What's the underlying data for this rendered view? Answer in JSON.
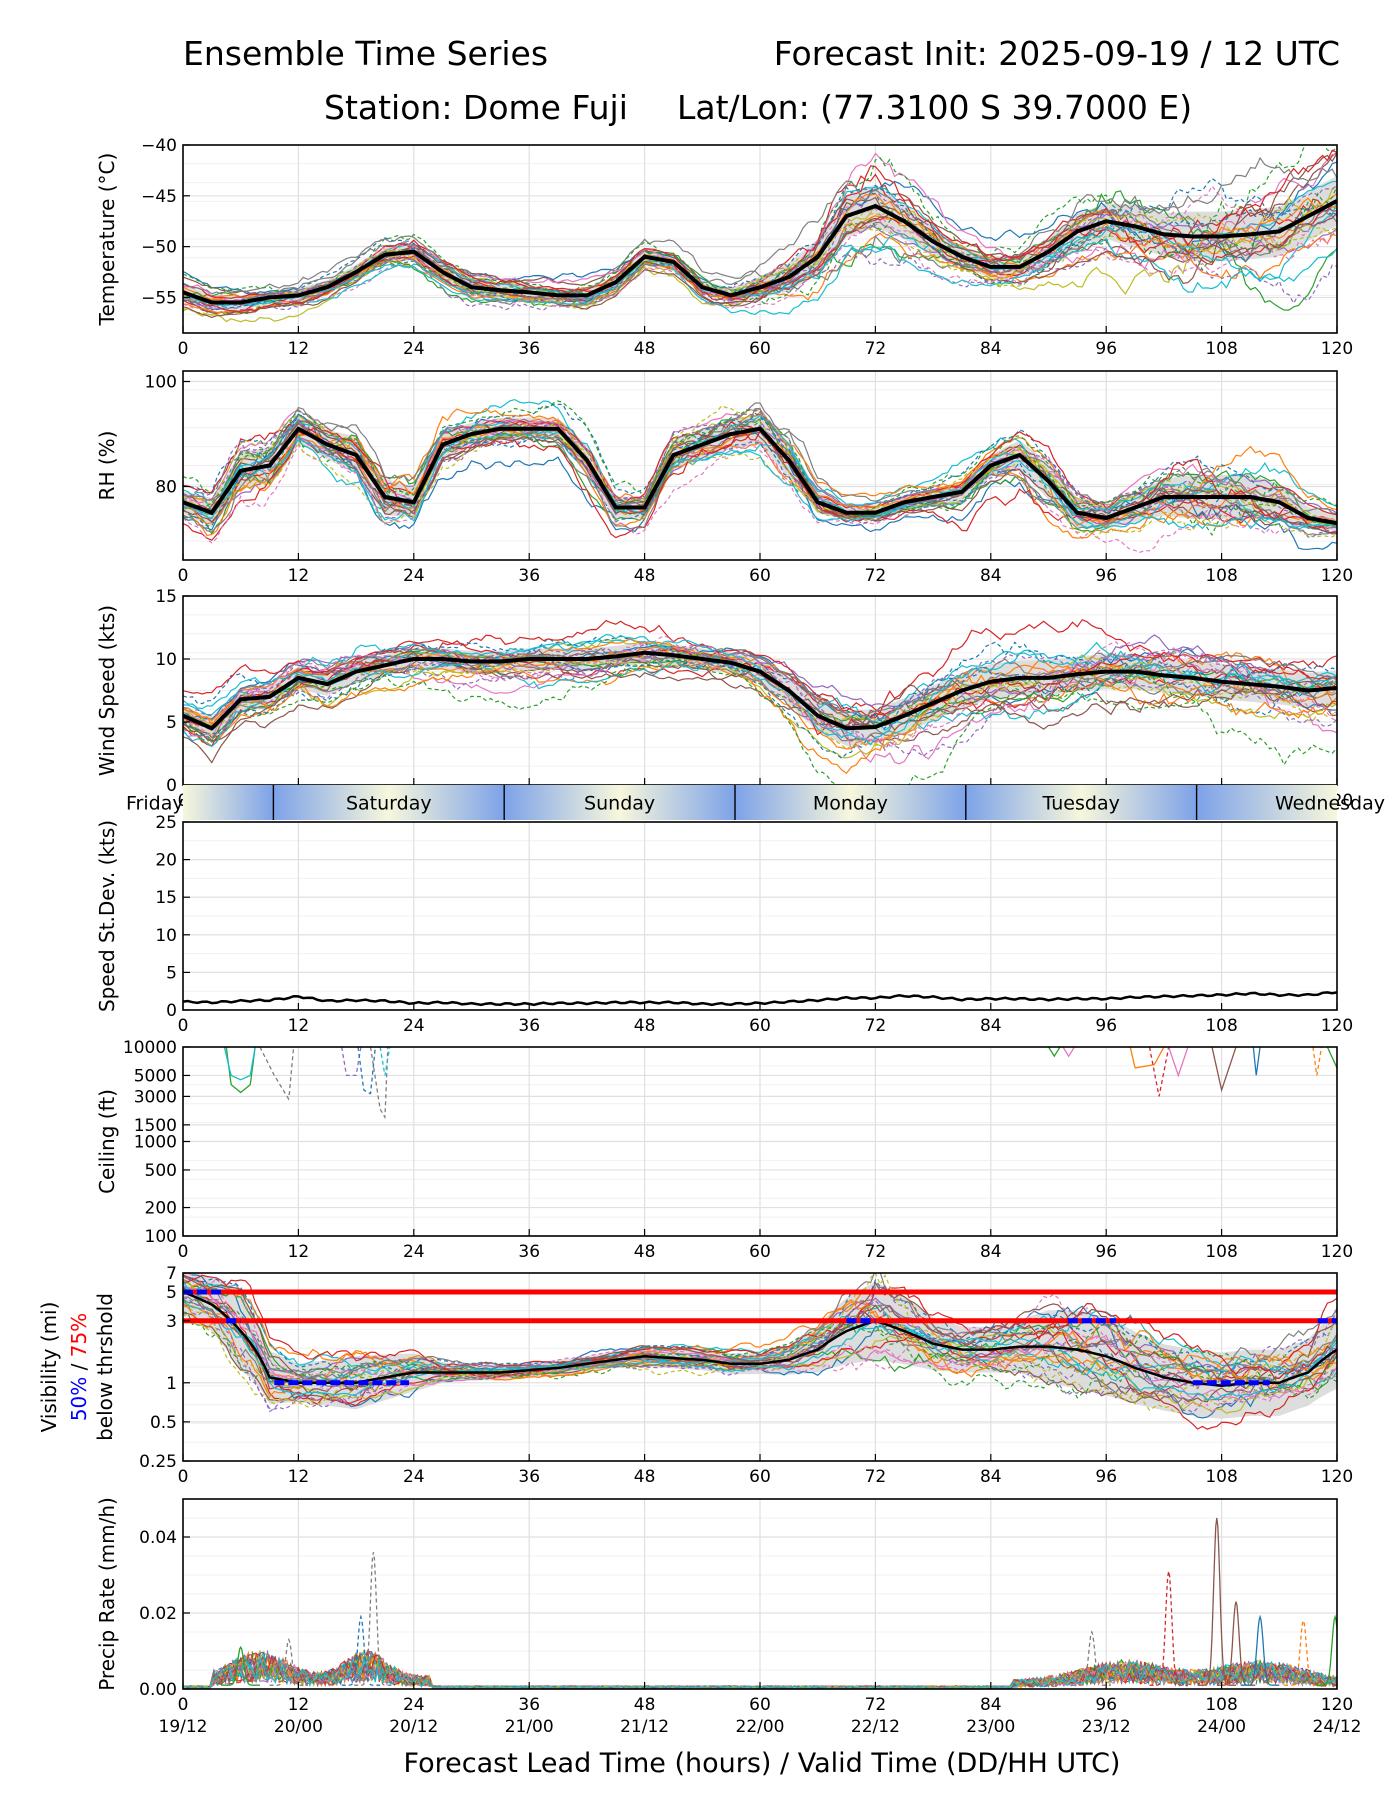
{
  "header": {
    "title": "Ensemble Time Series",
    "init": "Forecast Init: 2025-09-19 / 12 UTC",
    "station": "Station: Dome Fuji",
    "latlon": "Lat/Lon: (77.3100 S 39.7000 E)"
  },
  "colors": {
    "members": [
      "#1f77b4",
      "#ff7f0e",
      "#2ca02c",
      "#d62728",
      "#9467bd",
      "#8c564b",
      "#e377c2",
      "#7f7f7f",
      "#bcbd22",
      "#17becf"
    ],
    "mean": "#000000",
    "spread": "#d9d9d9",
    "threshold_50": "#0000ff",
    "threshold_75": "#ff0000",
    "grid": "#e0e0e0",
    "day_dark": "#7da2e8",
    "day_light": "#f7f7dc"
  },
  "chart_data": [
    {
      "type": "line",
      "id": "temperature",
      "ylabel": "Temperature (°C)",
      "ylim": [
        -58.5,
        -40
      ],
      "yticks": [
        -55,
        -50,
        -45,
        -40
      ],
      "yticklabels": [
        "−55",
        "−50",
        "−45",
        "−40"
      ],
      "x": [
        0,
        3,
        6,
        9,
        12,
        15,
        18,
        21,
        24,
        27,
        30,
        33,
        36,
        39,
        42,
        45,
        48,
        51,
        54,
        57,
        60,
        63,
        66,
        69,
        72,
        75,
        78,
        81,
        84,
        87,
        90,
        93,
        96,
        99,
        102,
        105,
        108,
        111,
        114,
        117,
        120
      ],
      "mean": [
        -54.5,
        -55.5,
        -55.5,
        -55,
        -54.8,
        -54,
        -52.5,
        -50.8,
        -50.5,
        -52.5,
        -54,
        -54.3,
        -54.5,
        -54.8,
        -54.8,
        -53.5,
        -51,
        -51.5,
        -54,
        -54.8,
        -54,
        -53,
        -51,
        -47,
        -46,
        -47.5,
        -49.5,
        -51,
        -52,
        -52,
        -50.5,
        -48.5,
        -47.5,
        -48,
        -48.8,
        -49,
        -49,
        -48.8,
        -48.5,
        -47,
        -45.5
      ],
      "spread": [
        1.2,
        1,
        1,
        1,
        1,
        1,
        1,
        1.2,
        1.2,
        1,
        1,
        1,
        1,
        1,
        1,
        1,
        1,
        1,
        1,
        1,
        1.5,
        2,
        2.5,
        3,
        3,
        2.5,
        2,
        1.5,
        1.5,
        1.5,
        2,
        2.5,
        2.5,
        3,
        3,
        3.5,
        3.5,
        3.5,
        3.5,
        3.5,
        3.5
      ],
      "members": 30
    },
    {
      "type": "line",
      "id": "rh",
      "ylabel": "RH (%)",
      "ylim": [
        66,
        102
      ],
      "yticks": [
        80,
        100
      ],
      "yticklabels": [
        "80",
        "100"
      ],
      "x": [
        0,
        3,
        6,
        9,
        12,
        15,
        18,
        21,
        24,
        27,
        30,
        33,
        36,
        39,
        42,
        45,
        48,
        51,
        54,
        57,
        60,
        63,
        66,
        69,
        72,
        75,
        78,
        81,
        84,
        87,
        90,
        93,
        96,
        99,
        102,
        105,
        108,
        111,
        114,
        117,
        120
      ],
      "mean": [
        77,
        75,
        83,
        84,
        91,
        88,
        86,
        78,
        77,
        88,
        90,
        91,
        91,
        91,
        85,
        76,
        76,
        86,
        88,
        90,
        91,
        85,
        77,
        75,
        75,
        77,
        78,
        79,
        84,
        86,
        81,
        75,
        74,
        76,
        78,
        78,
        78,
        78,
        77,
        74,
        73
      ],
      "spread": [
        3,
        4,
        5,
        5,
        4,
        4,
        5,
        5,
        4,
        4,
        3,
        3,
        3,
        3,
        4,
        3,
        3,
        4,
        4,
        4,
        4,
        5,
        3,
        2,
        2,
        2,
        2,
        3,
        3,
        4,
        5,
        4,
        3,
        4,
        5,
        6,
        6,
        6,
        5,
        3,
        2
      ],
      "members": 30
    },
    {
      "type": "line",
      "id": "wind",
      "ylabel": "Wind Speed (kts)",
      "ylim": [
        0,
        15
      ],
      "yticks": [
        0,
        5,
        10,
        15
      ],
      "yticklabels": [
        "0",
        "5",
        "10",
        "15"
      ],
      "x": [
        0,
        3,
        6,
        9,
        12,
        15,
        18,
        21,
        24,
        27,
        30,
        33,
        36,
        39,
        42,
        45,
        48,
        51,
        54,
        57,
        60,
        63,
        66,
        69,
        72,
        75,
        78,
        81,
        84,
        87,
        90,
        93,
        96,
        99,
        102,
        105,
        108,
        111,
        114,
        117,
        120
      ],
      "mean": [
        5.5,
        4.5,
        6.8,
        7,
        8.5,
        8,
        9,
        9.5,
        10,
        10,
        9.8,
        9.8,
        10,
        10,
        10,
        10.2,
        10.5,
        10.3,
        10,
        9.7,
        9,
        7.5,
        5.5,
        4.5,
        4.6,
        5.5,
        6.5,
        7.5,
        8.2,
        8.5,
        8.5,
        8.8,
        9,
        9,
        8.7,
        8.5,
        8.2,
        8,
        7.8,
        7.5,
        7.7
      ],
      "spread": [
        1,
        1.3,
        1.3,
        1.3,
        1.3,
        1.3,
        1.3,
        1.2,
        1.2,
        1.2,
        1.2,
        1.2,
        1.2,
        1.2,
        1.2,
        1.2,
        1.2,
        1.2,
        1.2,
        1.2,
        1.3,
        1.5,
        1.8,
        2,
        2,
        2,
        2,
        2,
        2,
        2,
        2,
        2,
        2,
        2,
        2,
        2,
        2,
        2,
        2,
        2,
        2
      ],
      "members": 30
    },
    {
      "type": "line",
      "id": "stdev",
      "ylabel": "Speed St.Dev. (kts)",
      "ylim": [
        0,
        25
      ],
      "yticks": [
        0,
        5,
        10,
        15,
        20,
        25
      ],
      "yticklabels": [
        "0",
        "5",
        "10",
        "15",
        "20",
        "25"
      ],
      "x": [
        0,
        3,
        6,
        9,
        12,
        15,
        18,
        21,
        24,
        27,
        30,
        33,
        36,
        39,
        42,
        45,
        48,
        51,
        54,
        57,
        60,
        63,
        66,
        69,
        72,
        75,
        78,
        81,
        84,
        87,
        90,
        93,
        96,
        99,
        102,
        105,
        108,
        111,
        114,
        117,
        120
      ],
      "mean": [
        1.1,
        1,
        1.2,
        1.3,
        1.8,
        1.2,
        1.3,
        1.2,
        0.9,
        1,
        0.8,
        0.8,
        0.8,
        0.9,
        0.9,
        1,
        1,
        1,
        0.8,
        0.8,
        0.9,
        1.1,
        1.3,
        1.6,
        1.6,
        1.9,
        1.7,
        1.4,
        1.5,
        1.5,
        1.4,
        1.5,
        1.5,
        1.7,
        1.8,
        1.9,
        2,
        2.2,
        2,
        2,
        2.4
      ]
    },
    {
      "type": "line",
      "id": "ceiling",
      "ylabel": "Ceiling (ft)",
      "scale": "log",
      "ylim": [
        100,
        10000
      ],
      "yticks": [
        100,
        200,
        500,
        1000,
        1500,
        3000,
        5000,
        10000
      ],
      "yticklabels": [
        "100",
        "200",
        "500",
        "1000",
        "1500",
        "3000",
        "5000",
        "10000"
      ],
      "events": [
        {
          "x": [
            4.5,
            5,
            6,
            7,
            7.5
          ],
          "y": [
            10000,
            4000,
            3300,
            4000,
            10000
          ],
          "color": "#2ca02c"
        },
        {
          "x": [
            4.3,
            5,
            6,
            7,
            7.5
          ],
          "y": [
            10000,
            5000,
            4500,
            5000,
            10000
          ],
          "color": "#17becf"
        },
        {
          "x": [
            8,
            9.5,
            11,
            11.5
          ],
          "y": [
            10000,
            5000,
            2800,
            10000
          ],
          "color": "#7f7f7f",
          "dashed": true
        },
        {
          "x": [
            16.5,
            17,
            18,
            18.5
          ],
          "y": [
            10000,
            5000,
            5000,
            10000
          ],
          "color": "#9467bd",
          "dashed": true
        },
        {
          "x": [
            18.2,
            18.8,
            19.5,
            20
          ],
          "y": [
            10000,
            3500,
            3200,
            10000
          ],
          "color": "#1f77b4",
          "dashed": true
        },
        {
          "x": [
            19.5,
            20.5,
            21,
            21.3
          ],
          "y": [
            10000,
            2200,
            1800,
            10000
          ],
          "color": "#7f7f7f",
          "dashed": true
        },
        {
          "x": [
            20.5,
            21,
            21.5
          ],
          "y": [
            10000,
            5000,
            10000
          ],
          "color": "#17becf",
          "dashed": true
        },
        {
          "x": [
            98.5,
            99,
            101,
            102
          ],
          "y": [
            10000,
            6000,
            6500,
            10000
          ],
          "color": "#ff7f0e"
        },
        {
          "x": [
            100.5,
            101.5,
            102.5
          ],
          "y": [
            10000,
            3000,
            10000
          ],
          "color": "#d62728",
          "dashed": true
        },
        {
          "x": [
            102.5,
            103.5,
            104.5
          ],
          "y": [
            10000,
            5000,
            10000
          ],
          "color": "#e377c2"
        },
        {
          "x": [
            107,
            108,
            109.5
          ],
          "y": [
            10000,
            3500,
            10000
          ],
          "color": "#8c564b"
        },
        {
          "x": [
            111.3,
            111.6,
            112
          ],
          "y": [
            10000,
            5000,
            10000
          ],
          "color": "#1f77b4"
        },
        {
          "x": [
            117.5,
            117.9,
            118.4
          ],
          "y": [
            10000,
            5000,
            10000
          ],
          "color": "#ff7f0e",
          "dashed": true
        },
        {
          "x": [
            119,
            120
          ],
          "y": [
            10000,
            6000
          ],
          "color": "#2ca02c"
        },
        {
          "x": [
            90,
            90.6,
            91.2
          ],
          "y": [
            10000,
            8000,
            10000
          ],
          "color": "#2ca02c"
        },
        {
          "x": [
            91.5,
            92.1,
            92.7
          ],
          "y": [
            10000,
            8000,
            10000
          ],
          "color": "#e377c2"
        }
      ]
    },
    {
      "type": "line",
      "id": "visibility",
      "ylabel": "Visibility (mi)",
      "ylabel_50": "50%",
      "ylabel_sep": " / ",
      "ylabel_75": "75%",
      "ylabel_line3": "below thrshold",
      "scale": "log",
      "ylim": [
        0.25,
        7
      ],
      "yticks": [
        0.25,
        0.5,
        1,
        3,
        5,
        7
      ],
      "yticklabels": [
        "0.25",
        "0.5",
        "1",
        "3",
        "5",
        "7"
      ],
      "x": [
        0,
        3,
        6,
        9,
        12,
        15,
        18,
        21,
        24,
        27,
        30,
        33,
        36,
        39,
        42,
        45,
        48,
        51,
        54,
        57,
        60,
        63,
        66,
        69,
        72,
        75,
        78,
        81,
        84,
        87,
        90,
        93,
        96,
        99,
        102,
        105,
        108,
        111,
        114,
        117,
        120
      ],
      "mean": [
        5,
        4,
        2.5,
        1.1,
        1,
        1,
        1,
        1.1,
        1.2,
        1.2,
        1.2,
        1.2,
        1.25,
        1.3,
        1.4,
        1.5,
        1.6,
        1.55,
        1.5,
        1.4,
        1.4,
        1.5,
        1.8,
        2.5,
        3,
        2.5,
        2,
        1.8,
        1.8,
        1.9,
        1.9,
        1.8,
        1.6,
        1.3,
        1.1,
        1,
        0.95,
        1,
        1,
        1.2,
        1.8
      ],
      "spread_factor": [
        1.5,
        1.6,
        2,
        1.6,
        1.4,
        1.5,
        1.6,
        1.5,
        1.4,
        1.2,
        1.15,
        1.15,
        1.15,
        1.15,
        1.15,
        1.15,
        1.2,
        1.2,
        1.2,
        1.2,
        1.2,
        1.3,
        1.5,
        1.8,
        2,
        1.8,
        1.6,
        1.5,
        1.5,
        1.6,
        1.9,
        2,
        2,
        1.9,
        1.8,
        1.8,
        1.8,
        1.8,
        1.8,
        1.8,
        2
      ],
      "members": 30,
      "threshold_lines_red": [
        {
          "y": 5,
          "x": [
            0,
            120
          ]
        },
        {
          "y": 3,
          "x": [
            0,
            120
          ]
        }
      ],
      "threshold_segments_blue": [
        {
          "y": 5,
          "x": [
            0,
            4
          ]
        },
        {
          "y": 3,
          "x": [
            4.5,
            6
          ]
        },
        {
          "y": 3,
          "x": [
            69,
            72
          ]
        },
        {
          "y": 3,
          "x": [
            92,
            97
          ]
        },
        {
          "y": 3,
          "x": [
            118,
            120
          ]
        },
        {
          "y": 1,
          "x": [
            9.5,
            23.5
          ]
        },
        {
          "y": 1,
          "x": [
            105,
            113
          ]
        }
      ]
    },
    {
      "type": "line",
      "id": "precip",
      "ylabel": "Precip Rate (mm/h)",
      "xlabel": "Forecast Lead Time (hours) / Valid Time (DD/HH UTC)",
      "ylim": [
        0,
        0.05
      ],
      "yticks": [
        0,
        0.02,
        0.04
      ],
      "yticklabels": [
        "0.00",
        "0.02",
        "0.04"
      ],
      "members": 30,
      "peaks": [
        {
          "x": 19.8,
          "y": 0.035,
          "color": "#7f7f7f",
          "dashed": true
        },
        {
          "x": 18.5,
          "y": 0.018,
          "color": "#1f77b4",
          "dashed": true
        },
        {
          "x": 102.5,
          "y": 0.03,
          "color": "#d62728",
          "dashed": true
        },
        {
          "x": 107.5,
          "y": 0.044,
          "color": "#8c564b"
        },
        {
          "x": 109.5,
          "y": 0.022,
          "color": "#8c564b"
        },
        {
          "x": 112,
          "y": 0.018,
          "color": "#1f77b4"
        },
        {
          "x": 116.5,
          "y": 0.017,
          "color": "#ff7f0e",
          "dashed": true
        },
        {
          "x": 119.8,
          "y": 0.018,
          "color": "#2ca02c"
        },
        {
          "x": 6,
          "y": 0.01,
          "color": "#2ca02c"
        },
        {
          "x": 11,
          "y": 0.012,
          "color": "#7f7f7f",
          "dashed": true
        },
        {
          "x": 94.5,
          "y": 0.014,
          "color": "#7f7f7f",
          "dashed": true
        }
      ]
    }
  ],
  "axes": {
    "xlim": [
      0,
      120
    ],
    "xticks": [
      0,
      12,
      24,
      36,
      48,
      60,
      72,
      84,
      96,
      108,
      120
    ],
    "xticklabels": [
      "0",
      "12",
      "24",
      "36",
      "48",
      "60",
      "72",
      "84",
      "96",
      "108",
      "120"
    ],
    "valid_times": [
      "19/12",
      "20/00",
      "20/12",
      "21/00",
      "21/12",
      "22/00",
      "22/12",
      "23/00",
      "23/12",
      "24/00",
      "24/12"
    ]
  },
  "day_strip": {
    "days": [
      "Friday",
      "Saturday",
      "Sunday",
      "Monday",
      "Tuesday",
      "Wednesday"
    ],
    "boundaries": [
      9.4,
      33.4,
      57.4,
      81.4,
      105.4
    ]
  }
}
